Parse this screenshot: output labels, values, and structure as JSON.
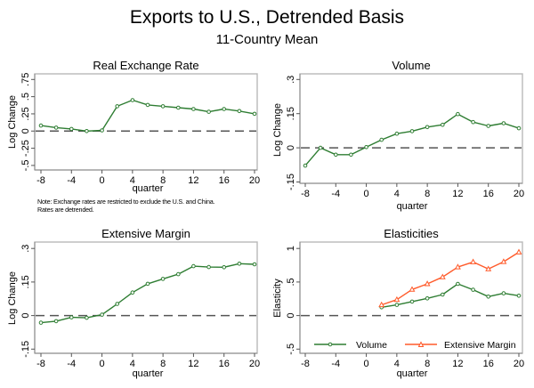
{
  "figure": {
    "title": "Exports to U.S., Detrended Basis",
    "subtitle": "11-Country Mean"
  },
  "chart_data": [
    {
      "type": "line",
      "title": "Real Exchange Rate",
      "xlabel": "quarter",
      "ylabel": "Log Change",
      "xlim": [
        -8,
        20
      ],
      "ylim": [
        -0.5,
        0.75
      ],
      "xticks": [
        -8,
        -4,
        0,
        4,
        8,
        12,
        16,
        20
      ],
      "xtick_labels": [
        "-8",
        "-4",
        "0",
        "4",
        "8",
        "12",
        "16",
        "20"
      ],
      "yticks": [
        -0.5,
        -0.25,
        0,
        0.25,
        0.5,
        0.75
      ],
      "ytick_labels": [
        "-.5",
        "-.25",
        "0",
        ".25",
        ".5",
        ".75"
      ],
      "reference_line": {
        "y": 0,
        "style": "dashed"
      },
      "grid": false,
      "note": [
        "Note: Exchange rates are restricted to exclude the U.S. and China.",
        "Rates are detrended."
      ],
      "series": [
        {
          "name": "Real Exchange Rate",
          "color": "#2e7d32",
          "marker": "circle",
          "x": [
            -8,
            -6,
            -4,
            -2,
            0,
            2,
            4,
            6,
            8,
            10,
            12,
            14,
            16,
            18,
            20
          ],
          "y": [
            0.08,
            0.05,
            0.03,
            0.0,
            0.01,
            0.36,
            0.45,
            0.38,
            0.36,
            0.34,
            0.32,
            0.28,
            0.32,
            0.29,
            0.25
          ]
        }
      ]
    },
    {
      "type": "line",
      "title": "Volume",
      "xlabel": "quarter",
      "ylabel": "Log Change",
      "xlim": [
        -8,
        20
      ],
      "ylim": [
        -0.15,
        0.3
      ],
      "xticks": [
        -8,
        -4,
        0,
        4,
        8,
        12,
        16,
        20
      ],
      "xtick_labels": [
        "-8",
        "-4",
        "0",
        "4",
        "8",
        "12",
        "16",
        "20"
      ],
      "yticks": [
        -0.15,
        0,
        0.15,
        0.3
      ],
      "ytick_labels": [
        "-.15",
        "0",
        ".15",
        ".3"
      ],
      "reference_line": {
        "y": 0,
        "style": "dashed"
      },
      "grid": false,
      "series": [
        {
          "name": "Volume",
          "color": "#2e7d32",
          "marker": "circle",
          "x": [
            -8,
            -6,
            -4,
            -2,
            0,
            2,
            4,
            6,
            8,
            10,
            12,
            14,
            16,
            18,
            20
          ],
          "y": [
            -0.078,
            0.0,
            -0.03,
            -0.03,
            0.003,
            0.035,
            0.062,
            0.073,
            0.091,
            0.101,
            0.148,
            0.113,
            0.096,
            0.108,
            0.086
          ]
        }
      ]
    },
    {
      "type": "line",
      "title": "Extensive Margin",
      "xlabel": "quarter",
      "ylabel": "Log Change",
      "xlim": [
        -8,
        20
      ],
      "ylim": [
        -0.15,
        0.3
      ],
      "xticks": [
        -8,
        -4,
        0,
        4,
        8,
        12,
        16,
        20
      ],
      "xtick_labels": [
        "-8",
        "-4",
        "0",
        "4",
        "8",
        "12",
        "16",
        "20"
      ],
      "yticks": [
        -0.15,
        0,
        0.15,
        0.3
      ],
      "ytick_labels": [
        "-.15",
        "0",
        ".15",
        ".3"
      ],
      "reference_line": {
        "y": 0,
        "style": "dashed"
      },
      "grid": false,
      "series": [
        {
          "name": "Extensive Margin",
          "color": "#2e7d32",
          "marker": "circle",
          "x": [
            -8,
            -6,
            -4,
            -2,
            0,
            2,
            4,
            6,
            8,
            10,
            12,
            14,
            16,
            18,
            20
          ],
          "y": [
            -0.032,
            -0.025,
            -0.008,
            -0.01,
            0.004,
            0.052,
            0.103,
            0.142,
            0.164,
            0.185,
            0.221,
            0.217,
            0.216,
            0.232,
            0.229
          ]
        }
      ]
    },
    {
      "type": "line",
      "title": "Elasticities",
      "xlabel": "quarter",
      "ylabel": "Elasticity",
      "xlim": [
        -8,
        20
      ],
      "ylim": [
        -0.5,
        1
      ],
      "xticks": [
        -8,
        -4,
        0,
        4,
        8,
        12,
        16,
        20
      ],
      "xtick_labels": [
        "-8",
        "-4",
        "0",
        "4",
        "8",
        "12",
        "16",
        "20"
      ],
      "yticks": [
        -0.5,
        0,
        0.5,
        1
      ],
      "ytick_labels": [
        "-.5",
        "0",
        ".5",
        "1"
      ],
      "reference_line": {
        "y": 0,
        "style": "dashed"
      },
      "grid": false,
      "legend": {
        "position": "bottom-inside",
        "entries": [
          "Volume",
          "Extensive Margin"
        ]
      },
      "series": [
        {
          "name": "Volume",
          "color": "#2e7d32",
          "marker": "circle",
          "x": [
            2,
            4,
            6,
            8,
            10,
            12,
            14,
            16,
            18,
            20
          ],
          "y": [
            0.124,
            0.159,
            0.208,
            0.256,
            0.313,
            0.472,
            0.384,
            0.283,
            0.331,
            0.296
          ]
        },
        {
          "name": "Extensive Margin",
          "color": "#ff5a2a",
          "marker": "triangle",
          "x": [
            2,
            4,
            6,
            8,
            10,
            12,
            14,
            16,
            18,
            20
          ],
          "y": [
            0.159,
            0.238,
            0.389,
            0.472,
            0.574,
            0.723,
            0.799,
            0.693,
            0.803,
            0.944
          ]
        }
      ]
    }
  ]
}
